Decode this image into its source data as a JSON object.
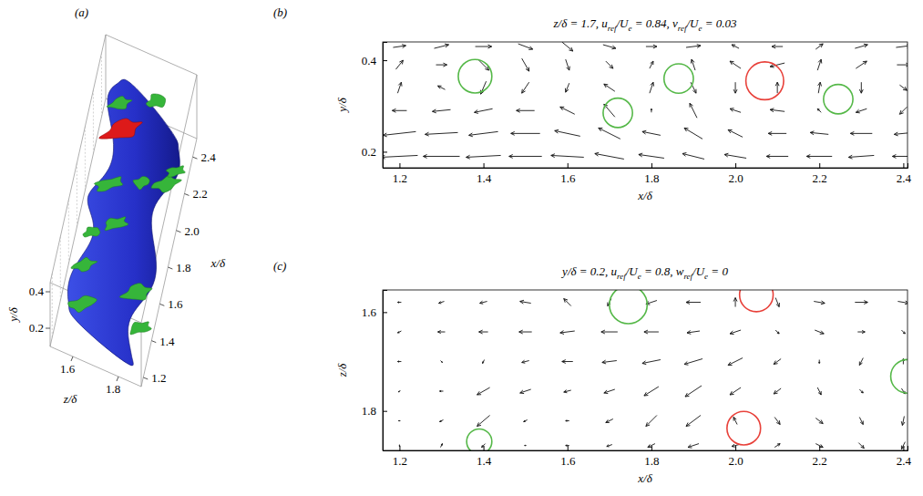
{
  "chart_data": [
    {
      "type": "isosurface",
      "panel": "(a)",
      "xlabel": "x/δ",
      "ylabel": "y/δ",
      "zlabel": "z/δ",
      "xlim": [
        1.15,
        2.5
      ],
      "ylim": [
        0.1,
        0.45
      ],
      "zlim": [
        1.5,
        1.9
      ],
      "xticks": [
        1.2,
        1.4,
        1.6,
        1.8,
        {
          "value": 2,
          "label": "2.0"
        },
        2.2,
        2.4
      ],
      "yticks": [
        0.2,
        0.4
      ],
      "zticks": [
        1.6,
        1.8
      ]
    },
    {
      "type": "vector",
      "panel": "(b)",
      "title": [
        "z/δ = 1.7, u",
        {
          "sub": "ref"
        },
        "/U",
        {
          "sub": "e"
        },
        " = 0.84, v",
        {
          "sub": "ref"
        },
        "/U",
        {
          "sub": "e"
        },
        " = 0.03"
      ],
      "xlabel": "x/δ",
      "ylabel": "y/δ",
      "xlim": [
        1.16,
        2.41
      ],
      "ylim": [
        0.165,
        0.44
      ],
      "xticks": [
        1.2,
        1.4,
        1.6,
        1.8,
        {
          "value": 2,
          "label": "2.0"
        },
        2.2,
        2.4
      ],
      "yticks": [
        0.2,
        0.4
      ],
      "x": [
        1.2,
        1.3,
        1.4,
        1.5,
        1.6,
        1.7,
        1.8,
        1.9,
        2.0,
        2.1,
        2.2,
        2.3,
        2.4
      ],
      "y": [
        0.43,
        0.39,
        0.34,
        0.29,
        0.24,
        0.19
      ],
      "u": [
        [
          0.35,
          0.4,
          0.45,
          0.4,
          0.3,
          0.35,
          0.3,
          0.4,
          -0.2,
          -0.3,
          0.2,
          0.35,
          0.4
        ],
        [
          0.2,
          0.3,
          0.3,
          0.2,
          0.1,
          0.2,
          0.1,
          -0.1,
          -0.3,
          -0.4,
          0.1,
          0.3,
          0.35
        ],
        [
          0.1,
          -0.2,
          -0.15,
          -0.2,
          -0.1,
          -0.3,
          0.1,
          0.15,
          0,
          0,
          0.05,
          0,
          0.2
        ],
        [
          -0.4,
          -0.5,
          -0.5,
          -0.5,
          -0.4,
          -0.3,
          0,
          -0.2,
          -0.3,
          -0.4,
          -0.1,
          -0.3,
          -0.2
        ],
        [
          -0.9,
          -0.9,
          -0.8,
          -0.8,
          -0.7,
          -0.6,
          -0.5,
          -0.5,
          -0.4,
          -0.5,
          -0.5,
          -0.6,
          -0.5
        ],
        [
          -1,
          -1,
          -0.95,
          -0.9,
          -0.9,
          -0.8,
          -0.7,
          -0.6,
          -0.6,
          -0.6,
          -0.7,
          -0.7,
          -0.6
        ]
      ],
      "v": [
        [
          0.05,
          0.1,
          0,
          -0.15,
          -0.25,
          -0.1,
          0,
          0.05,
          0.1,
          0,
          0.15,
          0.1,
          0.05
        ],
        [
          0.25,
          0,
          -0.3,
          -0.35,
          -0.3,
          -0.2,
          0.2,
          0.3,
          0.2,
          -0.1,
          0.3,
          0.2,
          0
        ],
        [
          0.3,
          0.1,
          -0.35,
          -0.3,
          -0.25,
          0.2,
          0.3,
          -0.3,
          -0.3,
          0.3,
          0.3,
          -0.3,
          -0.15
        ],
        [
          0,
          -0.05,
          -0.1,
          0,
          0.2,
          0.35,
          0.1,
          0.4,
          0.1,
          0.05,
          0.1,
          -0.1,
          -0.2
        ],
        [
          -0.1,
          -0.05,
          -0.1,
          0,
          0.15,
          0.3,
          0.1,
          0.3,
          0.2,
          0,
          0.05,
          0,
          -0.05
        ],
        [
          -0.05,
          0,
          -0.05,
          0,
          0.05,
          0.15,
          0.1,
          0.15,
          0.1,
          0,
          0,
          -0.05,
          0
        ]
      ],
      "circles": [
        {
          "x": 1.38,
          "y": 0.365,
          "r": 0.04,
          "color": "#55b848"
        },
        {
          "x": 1.72,
          "y": 0.285,
          "r": 0.035,
          "color": "#55b848"
        },
        {
          "x": 1.865,
          "y": 0.36,
          "r": 0.035,
          "color": "#55b848"
        },
        {
          "x": 2.07,
          "y": 0.355,
          "r": 0.045,
          "color": "#e8413a"
        },
        {
          "x": 2.245,
          "y": 0.315,
          "r": 0.035,
          "color": "#55b848"
        }
      ]
    },
    {
      "type": "vector",
      "panel": "(c)",
      "title": [
        "y/δ = 0.2, u",
        {
          "sub": "ref"
        },
        "/U",
        {
          "sub": "e"
        },
        " = 0.8, w",
        {
          "sub": "ref"
        },
        "/U",
        {
          "sub": "e"
        },
        " = 0"
      ],
      "xlabel": "x/δ",
      "zlabel": "z/δ",
      "xlim": [
        1.16,
        2.41
      ],
      "zlim": [
        1.88,
        1.555
      ],
      "xticks": [
        1.2,
        1.4,
        1.6,
        1.8,
        {
          "value": 2,
          "label": "2.0"
        },
        2.2,
        2.4
      ],
      "zticks": [
        1.6,
        1.8
      ],
      "x": [
        1.2,
        1.3,
        1.4,
        1.5,
        1.6,
        1.7,
        1.8,
        1.9,
        2.0,
        2.1,
        2.2,
        2.3,
        2.4
      ],
      "z": [
        1.58,
        1.64,
        1.7,
        1.76,
        1.82,
        1.87
      ],
      "u": [
        [
          -0.1,
          -0.15,
          -0.2,
          -0.3,
          -0.2,
          -0.1,
          -0.3,
          -0.4,
          0,
          0.1,
          0.3,
          0.35,
          0.3
        ],
        [
          -0.1,
          -0.2,
          -0.25,
          -0.35,
          -0.4,
          -0.45,
          -0.4,
          -0.35,
          -0.3,
          0.1,
          0.25,
          0.2,
          0.1
        ],
        [
          -0.1,
          0.05,
          -0.05,
          -0.2,
          -0.3,
          -0.4,
          -0.5,
          -0.5,
          -0.4,
          -0.2,
          0,
          -0.1,
          0
        ],
        [
          -0.05,
          -0.1,
          -0.35,
          -0.3,
          -0.2,
          -0.3,
          -0.4,
          -0.45,
          -0.3,
          -0.2,
          0.1,
          0.1,
          0.1
        ],
        [
          -0.05,
          -0.1,
          -0.35,
          -0.1,
          -0.1,
          -0.2,
          -0.3,
          -0.4,
          -0.1,
          0.15,
          0.2,
          0.1,
          -0.05
        ],
        [
          0,
          0.05,
          -0.1,
          -0.05,
          -0.1,
          -0.15,
          -0.2,
          -0.3,
          -0.2,
          0.15,
          0.2,
          0.15,
          -0.1
        ]
      ],
      "w": [
        [
          0,
          0.05,
          0.05,
          -0.05,
          -0.2,
          0.2,
          0.1,
          0,
          -0.25,
          0.25,
          0.05,
          0,
          0.05
        ],
        [
          0.05,
          0,
          0,
          0,
          0.05,
          0,
          0,
          0.05,
          0.1,
          0.1,
          0.1,
          0,
          0.1
        ],
        [
          0,
          0.05,
          0.1,
          0.05,
          0,
          0.05,
          0.1,
          0.15,
          0.2,
          0.15,
          0.1,
          0.2,
          -0.15
        ],
        [
          0.05,
          0,
          0.2,
          0.1,
          0.05,
          0.1,
          0.25,
          0.3,
          0.2,
          0.15,
          0.2,
          0.1,
          0.15
        ],
        [
          0,
          0.05,
          0.3,
          0.05,
          0,
          0.1,
          0.3,
          0.3,
          -0.2,
          0.2,
          0.15,
          0.2,
          0.25
        ],
        [
          0.05,
          -0.1,
          0.1,
          0,
          0,
          0.05,
          0.1,
          0.1,
          0.05,
          -0.1,
          0.1,
          0.15,
          0.2
        ]
      ],
      "circles": [
        {
          "x": 1.745,
          "z": 1.585,
          "r": 0.045,
          "color": "#55b848"
        },
        {
          "x": 2.05,
          "z": 1.565,
          "r": 0.04,
          "color": "#e8413a"
        },
        {
          "x": 2.41,
          "z": 1.73,
          "r": 0.04,
          "color": "#55b848"
        },
        {
          "x": 1.39,
          "z": 1.862,
          "r": 0.03,
          "color": "#55b848"
        },
        {
          "x": 2.02,
          "z": 1.835,
          "r": 0.04,
          "color": "#e8413a"
        }
      ]
    }
  ]
}
